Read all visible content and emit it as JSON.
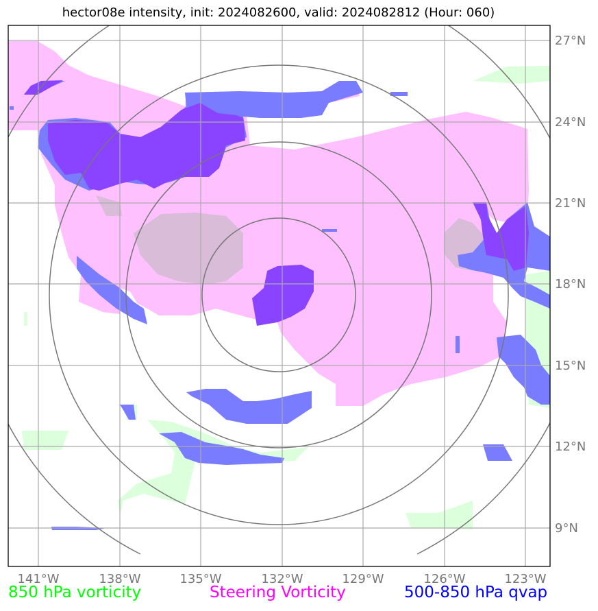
{
  "title": "hector08e intensity, init: 2024082600, valid: 2024082812 (Hour: 060)",
  "map": {
    "lat_range": [
      7.5,
      27.5
    ],
    "lon_range": [
      -142.2,
      -122.2
    ],
    "lat_ticks": [
      {
        "value": 27,
        "label": "27°N"
      },
      {
        "value": 24,
        "label": "24°N"
      },
      {
        "value": 21,
        "label": "21°N"
      },
      {
        "value": 18,
        "label": "18°N"
      },
      {
        "value": 15,
        "label": "15°N"
      },
      {
        "value": 12,
        "label": "12°N"
      },
      {
        "value": 9,
        "label": "9°N"
      }
    ],
    "lon_ticks": [
      {
        "value": -141,
        "label": "141°W"
      },
      {
        "value": -138,
        "label": "138°W"
      },
      {
        "value": -135,
        "label": "135°W"
      },
      {
        "value": -132,
        "label": "132°W"
      },
      {
        "value": -129,
        "label": "129°W"
      },
      {
        "value": -126,
        "label": "126°W"
      },
      {
        "value": -123,
        "label": "123°W"
      }
    ],
    "storm_center": {
      "lon": -132,
      "lat": 17.6
    },
    "range_ring_count": 4,
    "gridlines": true
  },
  "legend": {
    "vorticity_850": {
      "label": "850 hPa vorticity",
      "color": "#00ff00"
    },
    "steering_vorticity": {
      "label": "Steering Vorticity",
      "color": "#ff00ff"
    },
    "qvap_500_850": {
      "label": "500-850 hPa qvap",
      "color": "#0000ff"
    }
  },
  "colors": {
    "steering_fill": "#ffc0ff",
    "qvap_fill": "#7a7cff",
    "overlap_fill": "#8a44ff",
    "vorticity_fill": "#dcffdc",
    "gray_patch": "#d8bcd8",
    "grid": "#aaaaaa",
    "ring": "#777777"
  }
}
